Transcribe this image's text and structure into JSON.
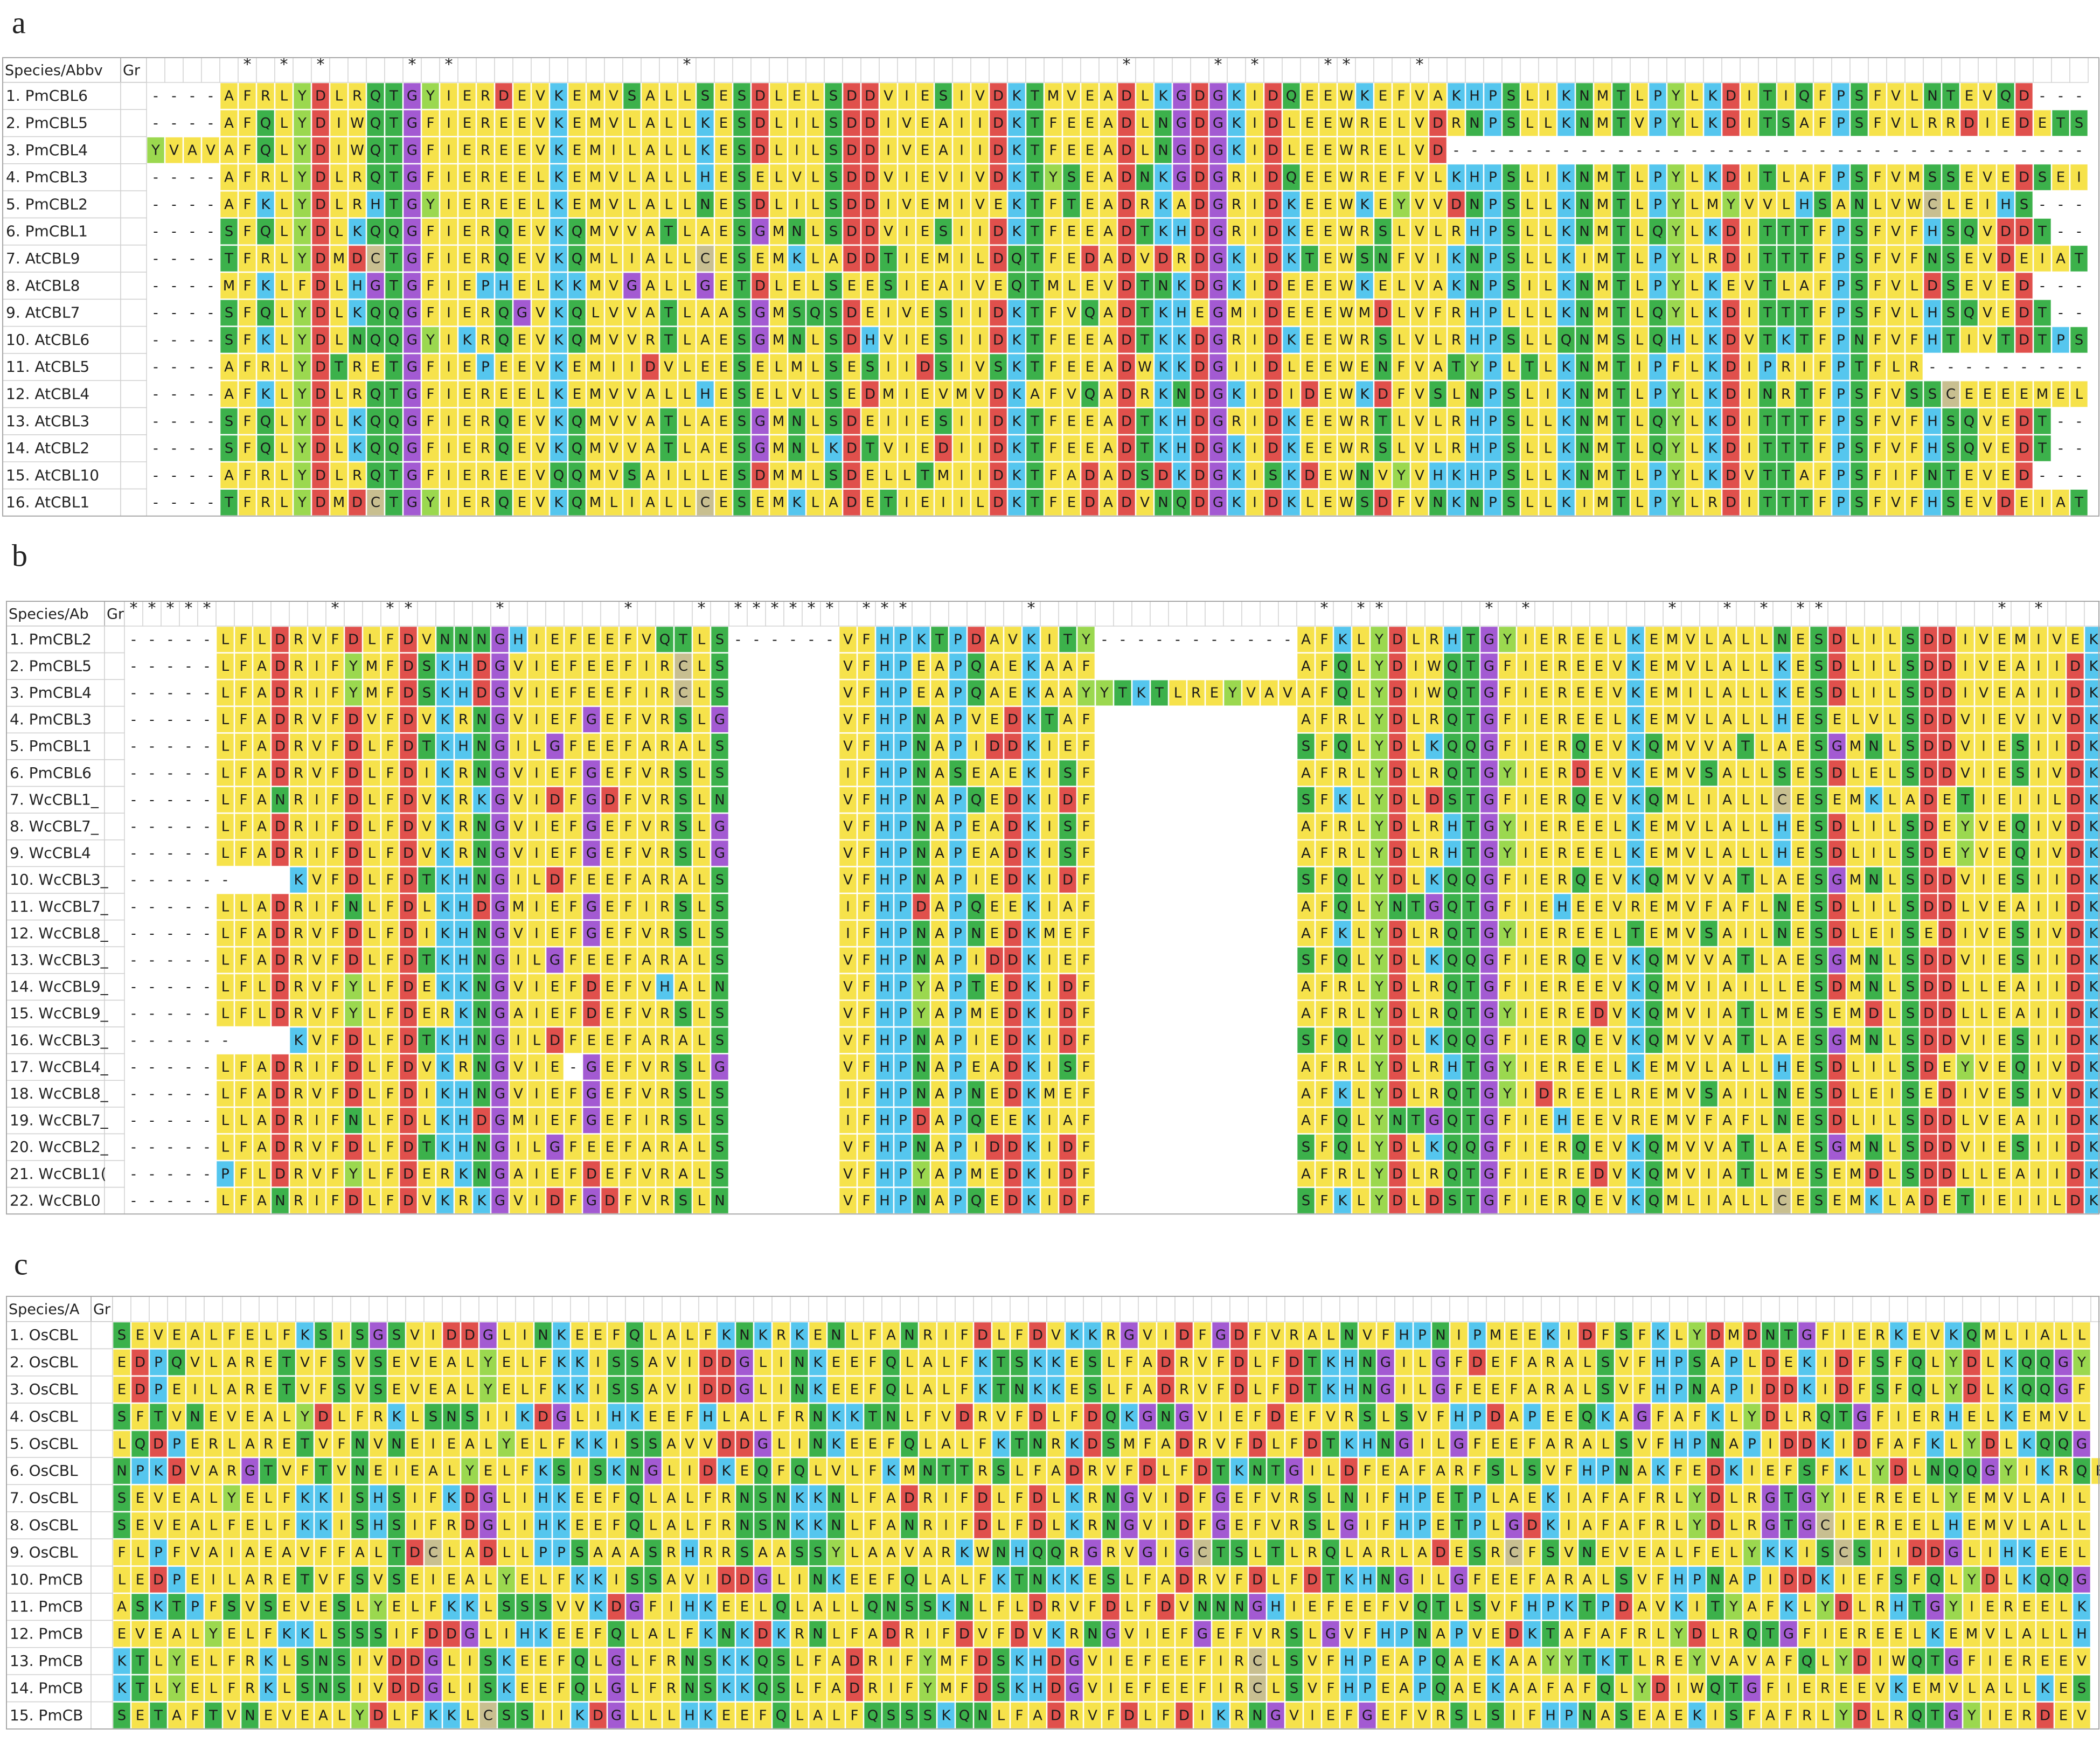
{
  "residue_colors": {
    "A": "#f6e24b",
    "V": "#f6e24b",
    "L": "#f6e24b",
    "I": "#f6e24b",
    "M": "#f6e24b",
    "F": "#f6e24b",
    "W": "#f6e24b",
    "E": "#f6e24b",
    "R": "#f6e24b",
    "D": "#e0504c",
    "G": "#a35ad2",
    "K": "#55c6ee",
    "H": "#55c6ee",
    "P": "#55c6ee",
    "S": "#3cb14b",
    "T": "#3cb14b",
    "N": "#3cb14b",
    "Q": "#3cb14b",
    "Y": "#9bd84f",
    "C": "#c8bf90"
  },
  "panels": [
    {
      "label": "a",
      "header": {
        "name": "Species/Abbv",
        "group": "Gr"
      },
      "conservation": "     * * *    * *            *                       *    * *   **   *",
      "rows": [
        {
          "name": "1. PmCBL6",
          "sequence": "----AFRLYDLRQTGYIERDEVKEMVSALLSESDLELSDDVIESIVDKTMVEADLKGDGKIDQEEWKEFVAKHPSLIKNMTLPYLKDITIQFPSFVLNTEVQD---"
        },
        {
          "name": "2. PmCBL5",
          "sequence": "----AFQLYDIWQTGFIEREEVKEMVLALLKESDLILSDDIVEAIIDKTFEEADLNGDGKIDLEEWRELVDRNPSLLKNMTVPYLKDITSAFPSFVLRRDIEDETS"
        },
        {
          "name": "3. PmCBL4",
          "sequence": "YVAVAFQLYDIWQTGFIEREEVKEMILALLKESDLILSDDIVEAIIDKTFEEADLNGDGKIDLEEWRELVD-----------------------------------"
        },
        {
          "name": "4. PmCBL3",
          "sequence": "----AFRLYDLRQTGFIEREELKEMVLALLHESELVLSDDVIEVIVDKTYSEADNKGDGRIDQEEWREFVLKHPSLIKNMTLPYLKDITLAFPSFVMSSEVEDSEI"
        },
        {
          "name": "5. PmCBL2",
          "sequence": "----AFKLYDLRHTGYIEREELKEMVLALLNESDLILSDDIVEMIVEKTFTEADRKADGRIDKEEWKEYVVDNPSLLKNMTLPYLMYVVLHSANLVWCLEIHS---"
        },
        {
          "name": "6. PmCBL1",
          "sequence": "----SFQLYDLKQQGFIERQEVKQMVVATLAESGMNLSDDVIESIIDKTFEEADTKHDGRIDKEEWRSLVLRHPSLLKNMTLQYLKDITTTFPSFVFHSQVDDT--"
        },
        {
          "name": "7. AtCBL9",
          "sequence": "----TFRLYDMDCTGFIERQEVKQMLIALLCESEMKLADDTIEMILDQTFEDADVDRDGKIDKTEWSNFVIKNPSLLKIMTLPYLRDITTTFPSFVFNSEVDEIAT"
        },
        {
          "name": "8. AtCBL8",
          "sequence": "----MFKLFDLHGTGFIEPHELKKMVGALLGETDLELSEESIEAIVEQTMLEVDTNKDGKIDEEEWKELVAKNPSILKNMTLPYLKEVTLAFPSFVLDSEVED---"
        },
        {
          "name": "9. AtCBL7",
          "sequence": "----SFQLYDLKQQGFIERQGVKQLVVATLAASGMSQSDEIVESIIDKTFVQADTKHEGMIDEEEWMDLVFRHPLLLKNMTLQYLKDITTTFPSFVLHSQVEDT--"
        },
        {
          "name": "10. AtCBL6",
          "sequence": "----SFKLYDLNQQGYIKRQEVKQMVVRTLAESGMNLSDHVIESIIDKTFEEADTKKDGRIDKEEWRSLVLRHPSLLQNMSLQHLKDVTKTFPNFVFHTIVTDTPS"
        },
        {
          "name": "11. AtCBL5",
          "sequence": "----AFRLYDTRETGFIEPEEVKEMIIDVLEESELMLSESIIDSIVSKTFEEADWKKDGIIDLEEWENFVATYPLTLKNMTIPFLKDIPRIFPTFLR---------"
        },
        {
          "name": "12. AtCBL4",
          "sequence": "----AFKLYDLRQTGFIEREELKEMVVALLHESELVLSEDMIEVMVDKAFVQADRKNDGKIDIDEWKDFVSLNPSLIKNMTLPYLKDINRTFPSFVSSCEEEEMEL"
        },
        {
          "name": "13. AtCBL3",
          "sequence": "----SFQLYDLKQQGFIERQEVKQMVVATLAESGMNLSDEIIESIIDKTFEEADTKHDGRIDKEEWRTLVLRHPSLLKNMTLQYLKDITTTFPSFVFHSQVEDT--"
        },
        {
          "name": "14. AtCBL2",
          "sequence": "----SFQLYDLKQQGFIERQEVKQMVVATLAESGMNLKDTVIEDIIDKTFEEADTKHDGKIDKEEWRSLVLRHPSLLKNMTLQYLKDITTTFPSFVFHSQVEDT--"
        },
        {
          "name": "15. AtCBL10",
          "sequence": "----AFRLYDLRQTGFIEREEVQQMVSAILLESDMMLSDELLTMIIDKTFADADSDKDGKISKDEWNVYVHKHPSLLKNMTLPYLKDVTTAFPSFIFNTEVED---"
        },
        {
          "name": "16. AtCBL1",
          "sequence": "----TFRLYDMDCTGYIERQEVKQMLIALLCESEMKLADETIEIILDKTFEDADVNQDGKIDKLEWSDFVNKNPSLLKIMTLPYLRDITTTFPSFVFHSEVDEIAT"
        }
      ]
    },
    {
      "label": "b",
      "header": {
        "name": "Species/Ab",
        "group": "Gr"
      },
      "conservation": "*****      *  **    *      *   * ****** ***      *               * **     * *       *  * * **         * *",
      "rows": [
        {
          "name": "1. PmCBL2",
          "sequence": "-----LFLDRVFDLFDVNNNGHIEFEEFVQTLS------VFHPKTPDAVKITY-----------AFKLYDLRHTGYIEREELKEMVLALLNESDLILSDDIVEMIVEK"
        },
        {
          "name": "2. PmCBL5",
          "sequence": "-----LFADRIFYMFDSKHDGVIEFEEFIRCLS      VFHPEAPQAEKAAF           AFQLYDIWQTGFIEREEVKEMVLALLKESDLILSDDIVEAIIDK"
        },
        {
          "name": "3. PmCBL4",
          "sequence": "-----LFADRIFYMFDSKHDGVIEFEEFIRCLS      VFHPEAPQAEKAAYYTKTLREYVAVAFQLYDIWQTGFIEREEVKEMILALLKESDLILSDDIVEAIIDK"
        },
        {
          "name": "4. PmCBL3",
          "sequence": "-----LFADRVFDVFDVKRNGVIEFGEFVRSLG      VFHPNAPVEDKTAF           AFRLYDLRQTGFIEREELKEMVLALLHESELVLSDDVIEVIVDK"
        },
        {
          "name": "5. PmCBL1",
          "sequence": "-----LFADRVFDLFDTKHNGILGFEEFARALS      VFHPNAPIDDKIEF           SFQLYDLKQQGFIERQEVKQMVVATLAESGMNLSDDVIESIIDK"
        },
        {
          "name": "6. PmCBL6",
          "sequence": "-----LFADRVFDLFDIKRNGVIEFGEFVRSLS      IFHPNASEAEKISF           AFRLYDLRQTGYIERDEVKEMVSALLSESDLELSDDVIESIVDK"
        },
        {
          "name": "7. WcCBL1_",
          "sequence": "-----LFANRIFDLFDVKRKGVIDFGDFVRSLN      VFHPNAPQEDKIDF           SFKLYDLDSTGFIERQEVKQMLIALLCESEMKLADETIEIILDK"
        },
        {
          "name": "8. WcCBL7_",
          "sequence": "-----LFADRIFDLFDVKRNGVIEFGEFVRSLG      VFHPNAPEADKISF           AFRLYDLRHTGYIEREELKEMVLALLHESDLILSDEYVEQIVDK"
        },
        {
          "name": "9. WcCBL4",
          "sequence": "-----LFADRIFDLFDVKRNGVIEFGEFVRSLG      VFHPNAPEADKISF           AFRLYDLRHTGYIEREELKEMVLALLHESDLILSDEYVEQIVDK"
        },
        {
          "name": "10. WcCBL3_",
          "sequence": "------   KVFDLFDTKHNGILDFEEFARALS      VFHPNAPIEDKIDF           SFQLYDLKQQGFIERQEVKQMVVATLAESGMNLSDDVIESIIDK"
        },
        {
          "name": "11. WcCBL7_",
          "sequence": "-----LLADRIFNLFDLKHDGMIEFGEFIRSLS      IFHPDAPQEEKIAF           AFQLYNTGQTGFIEHEEVREMVFAFLNESDLILSDDLVEAIIDK"
        },
        {
          "name": "12. WcCBL8_",
          "sequence": "-----LFADRVFDLFDIKHNGVIEFGEFVRSLS      IFHPNAPNEDKMEF           AFKLYDLRQTGYIEREELTEMVSAILNESDLEISEDIVESIVDK"
        },
        {
          "name": "13. WcCBL3_",
          "sequence": "-----LFADRVFDLFDTKHNGILGFEEFARALS      VFHPNAPIDDKIEF           SFQLYDLKQQGFIERQEVKQMVVATLAESGMNLSDDVIESIIDK"
        },
        {
          "name": "14. WcCBL9_",
          "sequence": "-----LFLDRVFYLFDEKKNGVIEFDEFVHALN      VFHPYAPTEDKIDF           AFRLYDLRQTGFIEREEVKQMVIAILLESDMNLSDDLLEAIIDK"
        },
        {
          "name": "15. WcCBL9_",
          "sequence": "-----LFLDRVFYLFDERKNGAIEFDEFVRSLS      VFHPYAPMEDKIDF           AFRLYDLRQTGYIEREDVKQMVIATLMESEMDLSDDLLEAIIDK"
        },
        {
          "name": "16. WcCBL3_",
          "sequence": "------   KVFDLFDTKHNGILDFEEFARALS      VFHPNAPIEDKIDF           SFQLYDLKQQGFIERQEVKQMVVATLAESGMNLSDDVIESIIDK"
        },
        {
          "name": "17. WcCBL4_",
          "sequence": "-----LFADRIFDLFDVKRNGVIE-GEFVRSLG      VFHPNAPEADKISF           AFRLYDLRHTGYIEREELKEMVLALLHESDLILSDEYVEQIVDK"
        },
        {
          "name": "18. WcCBL8_",
          "sequence": "-----LFADRVFDLFDIKHNGVIEFGEFVRSLS      IFHPNAPNEDKMEF           AFKLYDLRQTGYIDREELREMVSAILNESDLEISEDIVESIVDK"
        },
        {
          "name": "19. WcCBL7_",
          "sequence": "-----LLADRIFNLFDLKHDGMIEFGEFIRSLS      IFHPDAPQEEKIAF           AFQLYNTGQTGFIEHEEVREMVFAFLNESDLILSDDLVEAIIDK"
        },
        {
          "name": "20. WcCBL2_",
          "sequence": "-----LFADRVFDLFDTKHNGILGFEEFARALS      VFHPNAPIDDKIDF           SFQLYDLKQQGFIERQEVKQMVVATLAESGMNLSDDVIESIIDK"
        },
        {
          "name": "21. WcCBL1(",
          "sequence": "-----PFLDRVFYLFDERKNGAIEFDEFVRALS      VFHPYAPMEDKIDF           AFRLYDLRQTGFIEREDVKQMVIATLMESEMDLSDDLLEAIIDK"
        },
        {
          "name": "22. WcCBL0",
          "sequence": "-----LFANRIFDLFDVKRKGVIDFGDFVRSLN      VFHPNAPQEDKIDF           SFKLYDLDSTGFIERQEVKQMLIALLCESEMKLADETIEIILDK"
        }
      ]
    },
    {
      "label": "c",
      "header": {
        "name": "Species/A",
        "group": "Gr"
      },
      "rows": [
        {
          "name": "1. OsCBL",
          "sequence": "SEVEALFELFKSISGSVIDDGLINKEEFQLALFKNKRKENLFANRIFDLFDVKKRGVIDFGDFVRALNVFHPNIPMEEKIDFSFKLYDMDNTGFIERKEVKQMLIALL"
        },
        {
          "name": "2. OsCBL",
          "sequence": "EDPQVLARETVFSVSEVEALYELFKKISSAVIDDGLINKEEFQLALFKTSKKESLFADRVFDLFDTKHNGILGFDEFARALSVFHPSAPLDEKIDFSFQLYDLKQQGY"
        },
        {
          "name": "3. OsCBL",
          "sequence": "EDPEILARETVFSVSEVEALYELFKKISSAVIDDGLINKEEFQLALFKTNKKESLFADRVFDLFDTKHNGILGFEEFARALSVFHPNAPIDDKIDFSFQLYDLKQQGF"
        },
        {
          "name": "4. OsCBL",
          "sequence": "SFTVNEVEALYDLFRKLSNSIIKDGLIHKEEFHLALFRNKKTNLFVDRVFDLFDQKGNGVIEFDEFVRSLSVFHPDAPEEQKAGFAFKLYDLRQTGFIERHELKEMVL"
        },
        {
          "name": "5. OsCBL",
          "sequence": "LQDPERLARETVFNVNEIEALYELFKKISSAVVDDGLINKEEFQLALFKTNRKDSMFADRVFDLFDTKHNGILGFEEFARALSVFHPNAPIDDKIDFAFKLYDLKQQG"
        },
        {
          "name": "6. OsCBL",
          "sequence": "NPKDVARGTVFTVNEIEALYELFKSISKNGLIDKEQFQLVLFKMNTTRSLFADRVFDLFDTKNTGILDFEAFARFSLSVFHPNAKFEDKIEFSFKLYDLNQQGYIKRQE"
        },
        {
          "name": "7. OsCBL",
          "sequence": "SEVEALYELFKKISHSIFKDGLIHKEEFQLALFRNSNKKNLFADRIFDLFDLKRNGVIDFGEFVRSLNIFHPETPLAEKIAFAFRLYDLRGTGYIEREELYEMVLAIL"
        },
        {
          "name": "8. OsCBL",
          "sequence": "SEVEALFELFKKISHSIFRDGLIHKEEFQLALFRNSNKKNLFANRIFDLFDLKRNGVIDFGEFVRSLGIFHPETPLGDKIAFAFRLYDLRGTGCIEREELHEMVLALL"
        },
        {
          "name": "9. OsCBL",
          "sequence": "FLPFVAIAEAVFFALTDCLADLLPPSAAASRHRRSAASSYLAAVARKWNHQQRGRVGIGCTSLTLRQLARLADESRCFSVNEVEALFELYKKISCSIIDDGLIHKEEL"
        },
        {
          "name": "10. PmCB",
          "sequence": "LEDPEILARETVFSVSEIEALYELFKKISSAVIDDGLINKEEFQLALFKTNKKESLFADRVFDLFDTKHNGILGFEEFARALSVFHPNAPIDDKIEFSFQLYDLKQQG"
        },
        {
          "name": "11. PmCB",
          "sequence": "ASKTPFSVSEVESLYELFKKLSSSVVKDGFIHKEELQLALLQNSSKNLFLDRVFDLFDVNNNGHIEFEEFVQTLSVFHPKTPDAVKITYAFKLYDLRHTGYIEREELK"
        },
        {
          "name": "12. PmCB",
          "sequence": "EVEALYELFKKLSSSIFDDGLIHKEEFQLALFKNKDKRNLFADRIFDVFDVKRNGVIEFGEFVRSLGVFHPNAPVEDKTAFAFRLYDLRQTGFIEREELKEMVLALLH"
        },
        {
          "name": "13. PmCB",
          "sequence": "KTLYELFRKLSNSIVDDGLISKEEFQLGLFRNSKKQSLFADRIFYMFDSKHDGVIEFEEFIRCLSVFHPEAPQAEKAAYYTKTLREYVAVAFQLYDIWQTGFIEREEV"
        },
        {
          "name": "14. PmCB",
          "sequence": "KTLYELFRKLSNSIVDDGLISKEEFQLGLFRNSKKQSLFADRIFYMFDSKHDGVIEFEEFIRCLSVFHPEAPQAEKAAFAFQLYDIWQTGFIEREEVKEMVLALLKES"
        },
        {
          "name": "15. PmCB",
          "sequence": "SETAFTVNEVEALYDLFKKLCSSIIKDGLLLHKEEFQLALFQSSSKQNLFADRVFDLFDIKRNGVIEFGEFVRSLSIFHPNASEAEKISFAFRLYDLRQTGYIERDEV"
        }
      ]
    }
  ]
}
